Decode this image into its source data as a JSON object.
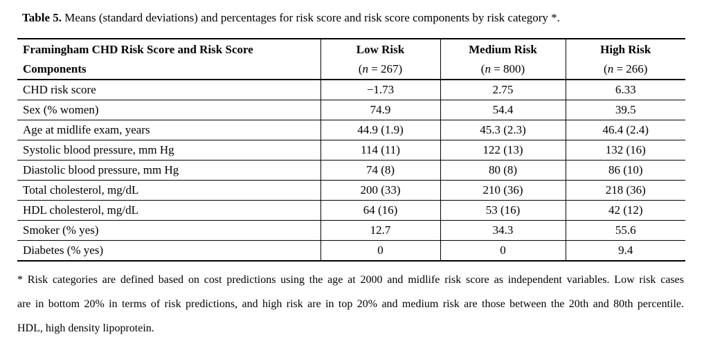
{
  "caption": {
    "label": "Table 5.",
    "text": " Means (standard deviations) and percentages for risk score and risk score components by risk category *."
  },
  "table": {
    "header": {
      "row_header": {
        "line1": "Framingham CHD Risk Score and Risk Score",
        "line2": "Components"
      },
      "columns": [
        {
          "label": "Low Risk",
          "n_open": "(",
          "n_var": "n",
          "n_rest": " = 267)"
        },
        {
          "label": "Medium Risk",
          "n_open": "(",
          "n_var": "n",
          "n_rest": " = 800)"
        },
        {
          "label": "High Risk",
          "n_open": "(",
          "n_var": "n",
          "n_rest": " = 266)"
        }
      ]
    },
    "rows": [
      {
        "label": "CHD risk score",
        "values": [
          "−1.73",
          "2.75",
          "6.33"
        ]
      },
      {
        "label": "Sex (% women)",
        "values": [
          "74.9",
          "54.4",
          "39.5"
        ]
      },
      {
        "label": "Age at midlife exam, years",
        "values": [
          "44.9 (1.9)",
          "45.3 (2.3)",
          "46.4 (2.4)"
        ]
      },
      {
        "label": "Systolic blood pressure, mm Hg",
        "values": [
          "114 (11)",
          "122 (13)",
          "132 (16)"
        ]
      },
      {
        "label": "Diastolic blood pressure, mm Hg",
        "values": [
          "74 (8)",
          "80 (8)",
          "86 (10)"
        ]
      },
      {
        "label": "Total cholesterol, mg/dL",
        "values": [
          "200 (33)",
          "210 (36)",
          "218 (36)"
        ]
      },
      {
        "label": "HDL cholesterol, mg/dL",
        "values": [
          "64 (16)",
          "53 (16)",
          "42 (12)"
        ]
      },
      {
        "label": "Smoker (% yes)",
        "values": [
          "12.7",
          "34.3",
          "55.6"
        ]
      },
      {
        "label": "Diabetes (% yes)",
        "values": [
          "0",
          "0",
          "9.4"
        ]
      }
    ]
  },
  "footnote": {
    "lines": [
      "* Risk categories are defined based on cost predictions using the age at 2000 and midlife risk score as independent variables. Low risk cases",
      "are in bottom 20% in terms of risk predictions, and high risk are in top 20% and medium risk are those between the 20th and 80th percentile.",
      "HDL, high density lipoprotein."
    ]
  },
  "colors": {
    "text": "#000000",
    "background": "#ffffff",
    "border": "#000000"
  }
}
